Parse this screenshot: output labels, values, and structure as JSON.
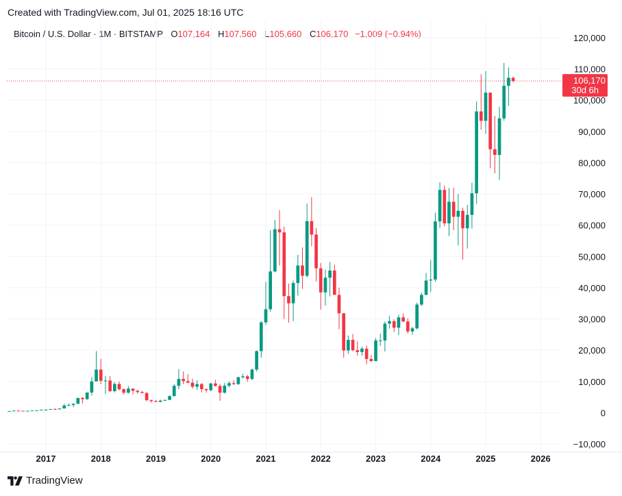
{
  "caption": "Created with TradingView.com, Jul 01, 2025 18:16 UTC",
  "legend": {
    "symbol": "Bitcoin / U.S. Dollar · 1M · BITSTAMP",
    "o_label": "O",
    "o_value": "107,164",
    "h_label": "H",
    "h_value": "107,560",
    "l_label": "L",
    "l_value": "105,660",
    "c_label": "C",
    "c_value": "106,170",
    "change": "−1,009 (−0.94%)"
  },
  "price_tag": {
    "price": "106,170",
    "countdown": "30d 6h"
  },
  "footer": {
    "brand": "TradingView",
    "logo_icon": "tradingview-logo-icon"
  },
  "colors": {
    "up": "#089981",
    "down": "#f23645",
    "grid": "#f0f3fa",
    "text": "#131722"
  },
  "chart_data": {
    "type": "candlestick",
    "interval": "1M",
    "ylim": [
      -10000,
      120000
    ],
    "y_ticks": [
      120000,
      110000,
      100000,
      90000,
      80000,
      70000,
      60000,
      50000,
      40000,
      30000,
      20000,
      10000,
      0,
      -10000
    ],
    "y_tick_labels": [
      "120,000",
      "110,000",
      "100,000",
      "90,000",
      "80,000",
      "70,000",
      "60,000",
      "50,000",
      "40,000",
      "30,000",
      "20,000",
      "10,000",
      "0",
      "−10,000"
    ],
    "x_tick_labels": [
      "2017",
      "2018",
      "2019",
      "2020",
      "2021",
      "2022",
      "2023",
      "2024",
      "2025",
      "2026"
    ],
    "x_range": [
      "2016-05",
      "2026-06"
    ],
    "last_price": 106170,
    "candles": [
      {
        "t": "2016-05",
        "o": 450,
        "h": 550,
        "l": 440,
        "c": 530
      },
      {
        "t": "2016-06",
        "o": 530,
        "h": 780,
        "l": 520,
        "c": 670
      },
      {
        "t": "2016-07",
        "o": 670,
        "h": 700,
        "l": 600,
        "c": 620
      },
      {
        "t": "2016-08",
        "o": 620,
        "h": 630,
        "l": 480,
        "c": 575
      },
      {
        "t": "2016-09",
        "o": 575,
        "h": 630,
        "l": 570,
        "c": 608
      },
      {
        "t": "2016-10",
        "o": 608,
        "h": 720,
        "l": 600,
        "c": 700
      },
      {
        "t": "2016-11",
        "o": 700,
        "h": 750,
        "l": 680,
        "c": 740
      },
      {
        "t": "2016-12",
        "o": 740,
        "h": 970,
        "l": 740,
        "c": 960
      },
      {
        "t": "2017-01",
        "o": 960,
        "h": 1150,
        "l": 750,
        "c": 970
      },
      {
        "t": "2017-02",
        "o": 970,
        "h": 1200,
        "l": 920,
        "c": 1190
      },
      {
        "t": "2017-03",
        "o": 1190,
        "h": 1350,
        "l": 900,
        "c": 1080
      },
      {
        "t": "2017-04",
        "o": 1080,
        "h": 1380,
        "l": 1060,
        "c": 1350
      },
      {
        "t": "2017-05",
        "o": 1350,
        "h": 2760,
        "l": 1340,
        "c": 2300
      },
      {
        "t": "2017-06",
        "o": 2300,
        "h": 3000,
        "l": 2100,
        "c": 2480
      },
      {
        "t": "2017-07",
        "o": 2480,
        "h": 2950,
        "l": 1800,
        "c": 2870
      },
      {
        "t": "2017-08",
        "o": 2870,
        "h": 4480,
        "l": 2680,
        "c": 4730
      },
      {
        "t": "2017-09",
        "o": 4730,
        "h": 4980,
        "l": 2970,
        "c": 4340
      },
      {
        "t": "2017-10",
        "o": 4340,
        "h": 6470,
        "l": 4100,
        "c": 6450
      },
      {
        "t": "2017-11",
        "o": 6450,
        "h": 11400,
        "l": 5500,
        "c": 10000
      },
      {
        "t": "2017-12",
        "o": 10000,
        "h": 19700,
        "l": 10800,
        "c": 13800
      },
      {
        "t": "2018-01",
        "o": 13800,
        "h": 17200,
        "l": 9100,
        "c": 10200
      },
      {
        "t": "2018-02",
        "o": 10200,
        "h": 11800,
        "l": 6000,
        "c": 10300
      },
      {
        "t": "2018-03",
        "o": 10300,
        "h": 11700,
        "l": 6600,
        "c": 6900
      },
      {
        "t": "2018-04",
        "o": 6900,
        "h": 9800,
        "l": 6500,
        "c": 9200
      },
      {
        "t": "2018-05",
        "o": 9200,
        "h": 10000,
        "l": 7100,
        "c": 7500
      },
      {
        "t": "2018-06",
        "o": 7500,
        "h": 7760,
        "l": 5800,
        "c": 6400
      },
      {
        "t": "2018-07",
        "o": 6400,
        "h": 8500,
        "l": 6100,
        "c": 7700
      },
      {
        "t": "2018-08",
        "o": 7700,
        "h": 7800,
        "l": 5900,
        "c": 7000
      },
      {
        "t": "2018-09",
        "o": 7000,
        "h": 7400,
        "l": 6100,
        "c": 6600
      },
      {
        "t": "2018-10",
        "o": 6600,
        "h": 7000,
        "l": 6200,
        "c": 6300
      },
      {
        "t": "2018-11",
        "o": 6300,
        "h": 6600,
        "l": 3700,
        "c": 4000
      },
      {
        "t": "2018-12",
        "o": 4000,
        "h": 4200,
        "l": 3200,
        "c": 3700
      },
      {
        "t": "2019-01",
        "o": 3700,
        "h": 4100,
        "l": 3400,
        "c": 3450
      },
      {
        "t": "2019-02",
        "o": 3450,
        "h": 4200,
        "l": 3400,
        "c": 3850
      },
      {
        "t": "2019-03",
        "o": 3850,
        "h": 4100,
        "l": 3700,
        "c": 4100
      },
      {
        "t": "2019-04",
        "o": 4100,
        "h": 5600,
        "l": 4000,
        "c": 5300
      },
      {
        "t": "2019-05",
        "o": 5300,
        "h": 9100,
        "l": 5200,
        "c": 8600
      },
      {
        "t": "2019-06",
        "o": 8600,
        "h": 13900,
        "l": 7500,
        "c": 10800
      },
      {
        "t": "2019-07",
        "o": 10800,
        "h": 13200,
        "l": 9100,
        "c": 10100
      },
      {
        "t": "2019-08",
        "o": 10100,
        "h": 12300,
        "l": 9400,
        "c": 9600
      },
      {
        "t": "2019-09",
        "o": 9600,
        "h": 10900,
        "l": 7700,
        "c": 8300
      },
      {
        "t": "2019-10",
        "o": 8300,
        "h": 10400,
        "l": 7300,
        "c": 9150
      },
      {
        "t": "2019-11",
        "o": 9150,
        "h": 9500,
        "l": 6500,
        "c": 7550
      },
      {
        "t": "2019-12",
        "o": 7550,
        "h": 7750,
        "l": 6400,
        "c": 7200
      },
      {
        "t": "2020-01",
        "o": 7200,
        "h": 9600,
        "l": 6850,
        "c": 9350
      },
      {
        "t": "2020-02",
        "o": 9350,
        "h": 10500,
        "l": 8400,
        "c": 8550
      },
      {
        "t": "2020-03",
        "o": 8550,
        "h": 9200,
        "l": 3800,
        "c": 6400
      },
      {
        "t": "2020-04",
        "o": 6400,
        "h": 9500,
        "l": 6100,
        "c": 8650
      },
      {
        "t": "2020-05",
        "o": 8650,
        "h": 10100,
        "l": 8100,
        "c": 9450
      },
      {
        "t": "2020-06",
        "o": 9450,
        "h": 10400,
        "l": 8900,
        "c": 9150
      },
      {
        "t": "2020-07",
        "o": 9150,
        "h": 11500,
        "l": 8900,
        "c": 11350
      },
      {
        "t": "2020-08",
        "o": 11350,
        "h": 12500,
        "l": 10900,
        "c": 11650
      },
      {
        "t": "2020-09",
        "o": 11650,
        "h": 12100,
        "l": 9900,
        "c": 10800
      },
      {
        "t": "2020-10",
        "o": 10800,
        "h": 14100,
        "l": 10400,
        "c": 13800
      },
      {
        "t": "2020-11",
        "o": 13800,
        "h": 19900,
        "l": 13200,
        "c": 19700
      },
      {
        "t": "2020-12",
        "o": 19700,
        "h": 29300,
        "l": 17600,
        "c": 28900
      },
      {
        "t": "2021-01",
        "o": 28900,
        "h": 41900,
        "l": 28100,
        "c": 33100
      },
      {
        "t": "2021-02",
        "o": 33100,
        "h": 58300,
        "l": 32300,
        "c": 45200
      },
      {
        "t": "2021-03",
        "o": 45200,
        "h": 61700,
        "l": 44900,
        "c": 58700
      },
      {
        "t": "2021-04",
        "o": 58700,
        "h": 64800,
        "l": 47100,
        "c": 57700
      },
      {
        "t": "2021-05",
        "o": 57700,
        "h": 59500,
        "l": 30000,
        "c": 37300
      },
      {
        "t": "2021-06",
        "o": 37300,
        "h": 41300,
        "l": 28800,
        "c": 35000
      },
      {
        "t": "2021-07",
        "o": 35000,
        "h": 42300,
        "l": 29300,
        "c": 41500
      },
      {
        "t": "2021-08",
        "o": 41500,
        "h": 50500,
        "l": 37400,
        "c": 47100
      },
      {
        "t": "2021-09",
        "o": 47100,
        "h": 52900,
        "l": 39600,
        "c": 43800
      },
      {
        "t": "2021-10",
        "o": 43800,
        "h": 66900,
        "l": 43300,
        "c": 61300
      },
      {
        "t": "2021-11",
        "o": 61300,
        "h": 69000,
        "l": 53300,
        "c": 57000
      },
      {
        "t": "2021-12",
        "o": 57000,
        "h": 59100,
        "l": 42000,
        "c": 46200
      },
      {
        "t": "2022-01",
        "o": 46200,
        "h": 47900,
        "l": 33000,
        "c": 38500
      },
      {
        "t": "2022-02",
        "o": 38500,
        "h": 45800,
        "l": 34300,
        "c": 43200
      },
      {
        "t": "2022-03",
        "o": 43200,
        "h": 48200,
        "l": 37200,
        "c": 45500
      },
      {
        "t": "2022-04",
        "o": 45500,
        "h": 47400,
        "l": 37700,
        "c": 37700
      },
      {
        "t": "2022-05",
        "o": 37700,
        "h": 40000,
        "l": 26700,
        "c": 31800
      },
      {
        "t": "2022-06",
        "o": 31800,
        "h": 31900,
        "l": 17600,
        "c": 19900
      },
      {
        "t": "2022-07",
        "o": 19900,
        "h": 24700,
        "l": 18800,
        "c": 23300
      },
      {
        "t": "2022-08",
        "o": 23300,
        "h": 25200,
        "l": 19600,
        "c": 20000
      },
      {
        "t": "2022-09",
        "o": 20000,
        "h": 22800,
        "l": 18200,
        "c": 19400
      },
      {
        "t": "2022-10",
        "o": 19400,
        "h": 21100,
        "l": 18200,
        "c": 20500
      },
      {
        "t": "2022-11",
        "o": 20500,
        "h": 21500,
        "l": 15500,
        "c": 17200
      },
      {
        "t": "2022-12",
        "o": 17200,
        "h": 18400,
        "l": 16300,
        "c": 16500
      },
      {
        "t": "2023-01",
        "o": 16500,
        "h": 23900,
        "l": 16500,
        "c": 23100
      },
      {
        "t": "2023-02",
        "o": 23100,
        "h": 25300,
        "l": 21400,
        "c": 23100
      },
      {
        "t": "2023-03",
        "o": 23100,
        "h": 29200,
        "l": 19600,
        "c": 28500
      },
      {
        "t": "2023-04",
        "o": 28500,
        "h": 31000,
        "l": 26900,
        "c": 29300
      },
      {
        "t": "2023-05",
        "o": 29300,
        "h": 29900,
        "l": 25800,
        "c": 27200
      },
      {
        "t": "2023-06",
        "o": 27200,
        "h": 31400,
        "l": 24800,
        "c": 30500
      },
      {
        "t": "2023-07",
        "o": 30500,
        "h": 31800,
        "l": 28900,
        "c": 29200
      },
      {
        "t": "2023-08",
        "o": 29200,
        "h": 30200,
        "l": 25300,
        "c": 26000
      },
      {
        "t": "2023-09",
        "o": 26000,
        "h": 27500,
        "l": 24900,
        "c": 27000
      },
      {
        "t": "2023-10",
        "o": 27000,
        "h": 35200,
        "l": 26600,
        "c": 34600
      },
      {
        "t": "2023-11",
        "o": 34600,
        "h": 38400,
        "l": 34100,
        "c": 37700
      },
      {
        "t": "2023-12",
        "o": 37700,
        "h": 44700,
        "l": 37600,
        "c": 42300
      },
      {
        "t": "2024-01",
        "o": 42300,
        "h": 48900,
        "l": 38600,
        "c": 42600
      },
      {
        "t": "2024-02",
        "o": 42600,
        "h": 64000,
        "l": 41900,
        "c": 61200
      },
      {
        "t": "2024-03",
        "o": 61200,
        "h": 73800,
        "l": 59100,
        "c": 71300
      },
      {
        "t": "2024-04",
        "o": 71300,
        "h": 72700,
        "l": 59600,
        "c": 60600
      },
      {
        "t": "2024-05",
        "o": 60600,
        "h": 71900,
        "l": 56500,
        "c": 67500
      },
      {
        "t": "2024-06",
        "o": 67500,
        "h": 72000,
        "l": 58400,
        "c": 62700
      },
      {
        "t": "2024-07",
        "o": 62700,
        "h": 70000,
        "l": 53500,
        "c": 64600
      },
      {
        "t": "2024-08",
        "o": 64600,
        "h": 65600,
        "l": 49000,
        "c": 59000
      },
      {
        "t": "2024-09",
        "o": 59000,
        "h": 66500,
        "l": 52500,
        "c": 63300
      },
      {
        "t": "2024-10",
        "o": 63300,
        "h": 73600,
        "l": 58900,
        "c": 70200
      },
      {
        "t": "2024-11",
        "o": 70200,
        "h": 99600,
        "l": 66800,
        "c": 96400
      },
      {
        "t": "2024-12",
        "o": 96400,
        "h": 108300,
        "l": 90500,
        "c": 93400
      },
      {
        "t": "2025-01",
        "o": 93400,
        "h": 109300,
        "l": 89200,
        "c": 102400
      },
      {
        "t": "2025-02",
        "o": 102400,
        "h": 102500,
        "l": 78200,
        "c": 84300
      },
      {
        "t": "2025-03",
        "o": 84300,
        "h": 95000,
        "l": 76600,
        "c": 82500
      },
      {
        "t": "2025-04",
        "o": 82500,
        "h": 97900,
        "l": 74500,
        "c": 94200
      },
      {
        "t": "2025-05",
        "o": 94200,
        "h": 111900,
        "l": 93400,
        "c": 104600
      },
      {
        "t": "2025-06",
        "o": 104600,
        "h": 110500,
        "l": 98200,
        "c": 107200
      },
      {
        "t": "2025-07",
        "o": 107164,
        "h": 107560,
        "l": 105660,
        "c": 106170
      }
    ]
  }
}
